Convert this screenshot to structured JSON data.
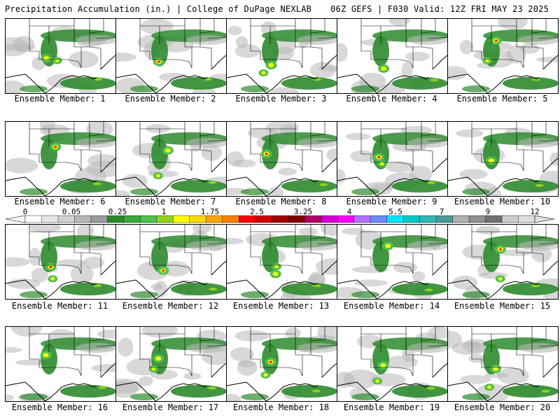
{
  "header": {
    "left": "Precipitation Accumulation (in.) | College of DuPage NEXLAB",
    "right": "06Z GEFS | F030 Valid: 12Z FRI MAY 23 2025"
  },
  "colors": {
    "background": "#ffffff",
    "map_lines": "#000000",
    "scale": [
      "#ffffff",
      "#e6e6e6",
      "#d0d0d0",
      "#b6b6b6",
      "#9a9a9a",
      "#2a8a2a",
      "#3aa83a",
      "#4fc04f",
      "#8ed21e",
      "#ffff00",
      "#ffd700",
      "#ffa500",
      "#ff7f00",
      "#ff0000",
      "#d00000",
      "#a00000",
      "#800000",
      "#b0006a",
      "#d000d0",
      "#ff00ff",
      "#b070ff",
      "#6b8cff",
      "#00e5ff",
      "#00c8c8",
      "#30b8b8",
      "#4a9a9a",
      "#b0b0b0",
      "#909090",
      "#707070",
      "#cccccc",
      "#dddddd"
    ]
  },
  "colorbar": {
    "labels": [
      "0",
      "0.05",
      "0.25",
      "1",
      "1.75",
      "2.5",
      "3.25",
      "4",
      "5.5",
      "7",
      "9",
      "12"
    ]
  },
  "panels": [
    {
      "label": "Ensemble Member: 1"
    },
    {
      "label": "Ensemble Member: 2"
    },
    {
      "label": "Ensemble Member: 3"
    },
    {
      "label": "Ensemble Member: 4"
    },
    {
      "label": "Ensemble Member: 5"
    },
    {
      "label": "Ensemble Member: 6"
    },
    {
      "label": "Ensemble Member: 7"
    },
    {
      "label": "Ensemble Member: 8"
    },
    {
      "label": "Ensemble Member: 9"
    },
    {
      "label": "Ensemble Member: 10"
    },
    {
      "label": "Ensemble Member: 11"
    },
    {
      "label": "Ensemble Member: 12"
    },
    {
      "label": "Ensemble Member: 13"
    },
    {
      "label": "Ensemble Member: 14"
    },
    {
      "label": "Ensemble Member: 15"
    },
    {
      "label": "Ensemble Member: 16"
    },
    {
      "label": "Ensemble Member: 17"
    },
    {
      "label": "Ensemble Member: 18"
    },
    {
      "label": "Ensemble Member: 19"
    },
    {
      "label": "Ensemble Member: 20"
    }
  ]
}
